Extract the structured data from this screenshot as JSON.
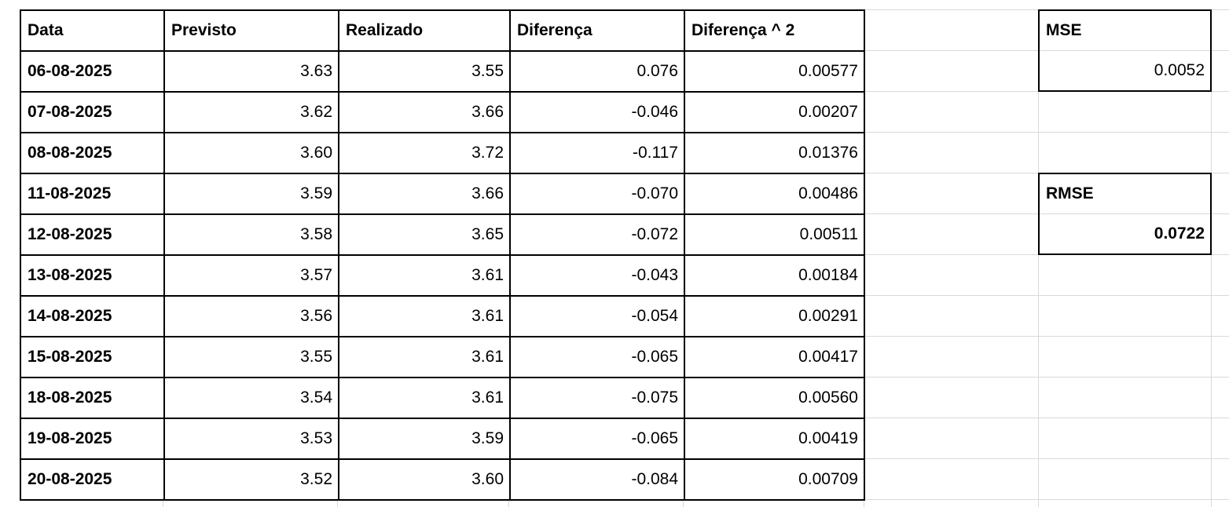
{
  "sheet": {
    "table": {
      "headers": [
        "Data",
        "Previsto",
        "Realizado",
        "Diferença",
        "Diferença ^ 2"
      ],
      "rows": [
        {
          "data": "06-08-2025",
          "previsto": "3.63",
          "realizado": "3.55",
          "diferenca": "0.076",
          "diferenca_sq": "0.00577"
        },
        {
          "data": "07-08-2025",
          "previsto": "3.62",
          "realizado": "3.66",
          "diferenca": "-0.046",
          "diferenca_sq": "0.00207"
        },
        {
          "data": "08-08-2025",
          "previsto": "3.60",
          "realizado": "3.72",
          "diferenca": "-0.117",
          "diferenca_sq": "0.01376"
        },
        {
          "data": "11-08-2025",
          "previsto": "3.59",
          "realizado": "3.66",
          "diferenca": "-0.070",
          "diferenca_sq": "0.00486"
        },
        {
          "data": "12-08-2025",
          "previsto": "3.58",
          "realizado": "3.65",
          "diferenca": "-0.072",
          "diferenca_sq": "0.00511"
        },
        {
          "data": "13-08-2025",
          "previsto": "3.57",
          "realizado": "3.61",
          "diferenca": "-0.043",
          "diferenca_sq": "0.00184"
        },
        {
          "data": "14-08-2025",
          "previsto": "3.56",
          "realizado": "3.61",
          "diferenca": "-0.054",
          "diferenca_sq": "0.00291"
        },
        {
          "data": "15-08-2025",
          "previsto": "3.55",
          "realizado": "3.61",
          "diferenca": "-0.065",
          "diferenca_sq": "0.00417"
        },
        {
          "data": "18-08-2025",
          "previsto": "3.54",
          "realizado": "3.61",
          "diferenca": "-0.075",
          "diferenca_sq": "0.00560"
        },
        {
          "data": "19-08-2025",
          "previsto": "3.53",
          "realizado": "3.59",
          "diferenca": "-0.065",
          "diferenca_sq": "0.00419"
        },
        {
          "data": "20-08-2025",
          "previsto": "3.52",
          "realizado": "3.60",
          "diferenca": "-0.084",
          "diferenca_sq": "0.00709"
        }
      ]
    },
    "metrics": {
      "mse": {
        "label": "MSE",
        "value": "0.0052"
      },
      "rmse": {
        "label": "RMSE",
        "value": "0.0722"
      }
    },
    "colors": {
      "text": "#000000",
      "table_border": "#000000",
      "gridline": "#d9d9d9",
      "background": "#ffffff"
    }
  }
}
